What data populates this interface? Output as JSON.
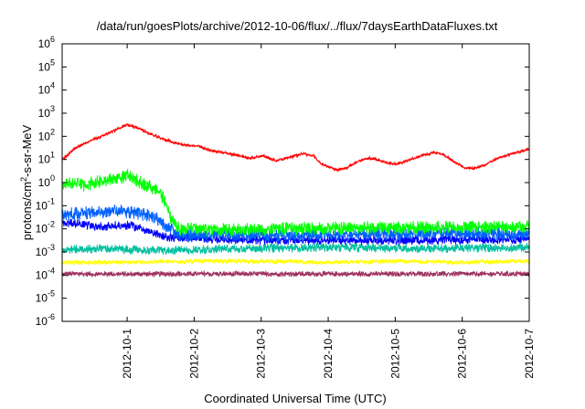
{
  "chart_data": {
    "type": "line",
    "title": "/data/run/goesPlots/archive/2012-10-06/flux/../flux/7daysEarthDataFluxes.txt",
    "xlabel": "Coordinated Universal Time (UTC)",
    "ylabel": "protons/cm²-s-sr-MeV",
    "ylabel_parts": {
      "main": "protons/cm",
      "sup": "2",
      "rest": "-s-sr-MeV"
    },
    "x_ticks": [
      "2012-10-1",
      "2012-10-2",
      "2012-10-3",
      "2012-10-4",
      "2012-10-5",
      "2012-10-6",
      "2012-10-7"
    ],
    "xlim_days": [
      0,
      6.97
    ],
    "tick_positions_days": [
      0.97,
      1.97,
      2.97,
      3.97,
      4.97,
      5.97,
      6.97
    ],
    "y_scale": "log",
    "y_ticks": [
      {
        "base": "10",
        "exp": "-6"
      },
      {
        "base": "10",
        "exp": "-5"
      },
      {
        "base": "10",
        "exp": "-4"
      },
      {
        "base": "10",
        "exp": "-3"
      },
      {
        "base": "10",
        "exp": "-2"
      },
      {
        "base": "10",
        "exp": "-1"
      },
      {
        "base": "10",
        "exp": "0"
      },
      {
        "base": "10",
        "exp": "1"
      },
      {
        "base": "10",
        "exp": "2"
      },
      {
        "base": "10",
        "exp": "3"
      },
      {
        "base": "10",
        "exp": "4"
      },
      {
        "base": "10",
        "exp": "5"
      },
      {
        "base": "10",
        "exp": "6"
      }
    ],
    "ylim_exp": [
      -6,
      6
    ],
    "grid": false,
    "series": [
      {
        "color": "#ff0000",
        "noise": 0.06,
        "points": [
          [
            0,
            1.0
          ],
          [
            0.2,
            1.5
          ],
          [
            0.4,
            1.8
          ],
          [
            0.55,
            1.95
          ],
          [
            0.7,
            2.15
          ],
          [
            0.85,
            2.35
          ],
          [
            0.97,
            2.5
          ],
          [
            1.1,
            2.4
          ],
          [
            1.25,
            2.2
          ],
          [
            1.4,
            2.0
          ],
          [
            1.55,
            1.85
          ],
          [
            1.7,
            1.7
          ],
          [
            1.9,
            1.6
          ],
          [
            2.05,
            1.55
          ],
          [
            2.2,
            1.4
          ],
          [
            2.4,
            1.3
          ],
          [
            2.6,
            1.2
          ],
          [
            2.8,
            1.05
          ],
          [
            3.0,
            1.15
          ],
          [
            3.2,
            0.95
          ],
          [
            3.4,
            1.1
          ],
          [
            3.6,
            1.25
          ],
          [
            3.75,
            1.15
          ],
          [
            3.85,
            0.85
          ],
          [
            3.95,
            0.7
          ],
          [
            4.1,
            0.55
          ],
          [
            4.25,
            0.65
          ],
          [
            4.4,
            0.9
          ],
          [
            4.55,
            1.05
          ],
          [
            4.7,
            1.0
          ],
          [
            4.85,
            0.85
          ],
          [
            5.0,
            0.8
          ],
          [
            5.2,
            1.0
          ],
          [
            5.4,
            1.2
          ],
          [
            5.55,
            1.3
          ],
          [
            5.7,
            1.2
          ],
          [
            5.85,
            0.9
          ],
          [
            6.0,
            0.65
          ],
          [
            6.15,
            0.6
          ],
          [
            6.3,
            0.75
          ],
          [
            6.5,
            1.05
          ],
          [
            6.7,
            1.25
          ],
          [
            6.97,
            1.45
          ]
        ]
      },
      {
        "color": "#00ff00",
        "noise": 0.3,
        "points": [
          [
            0,
            -0.05
          ],
          [
            0.3,
            -0.1
          ],
          [
            0.6,
            0.05
          ],
          [
            0.85,
            0.2
          ],
          [
            0.97,
            0.3
          ],
          [
            1.1,
            0.1
          ],
          [
            1.3,
            -0.15
          ],
          [
            1.45,
            -0.4
          ],
          [
            1.55,
            -0.9
          ],
          [
            1.62,
            -1.5
          ],
          [
            1.75,
            -2.0
          ],
          [
            2.5,
            -2.05
          ],
          [
            3.5,
            -2.0
          ],
          [
            4.5,
            -1.95
          ],
          [
            5.5,
            -1.95
          ],
          [
            6.5,
            -1.9
          ],
          [
            6.97,
            -1.9
          ]
        ]
      },
      {
        "color": "#0060ff",
        "noise": 0.3,
        "points": [
          [
            0,
            -1.4
          ],
          [
            0.4,
            -1.3
          ],
          [
            0.8,
            -1.2
          ],
          [
            1.1,
            -1.3
          ],
          [
            1.4,
            -1.5
          ],
          [
            1.6,
            -2.0
          ],
          [
            1.75,
            -2.25
          ],
          [
            3,
            -2.3
          ],
          [
            5,
            -2.2
          ],
          [
            6.97,
            -2.2
          ]
        ]
      },
      {
        "color": "#0000ff",
        "noise": 0.2,
        "points": [
          [
            0,
            -1.7
          ],
          [
            0.5,
            -1.9
          ],
          [
            1.0,
            -1.85
          ],
          [
            1.2,
            -2.0
          ],
          [
            1.5,
            -2.35
          ],
          [
            1.9,
            -2.4
          ],
          [
            3,
            -2.5
          ],
          [
            5,
            -2.5
          ],
          [
            6.97,
            -2.45
          ]
        ]
      },
      {
        "color": "#00c0a0",
        "noise": 0.2,
        "points": [
          [
            0,
            -2.9
          ],
          [
            0.6,
            -2.85
          ],
          [
            1.0,
            -2.9
          ],
          [
            1.6,
            -2.95
          ],
          [
            2.5,
            -2.85
          ],
          [
            4,
            -2.8
          ],
          [
            5.5,
            -2.85
          ],
          [
            6.97,
            -2.8
          ]
        ]
      },
      {
        "color": "#ffff00",
        "noise": 0.1,
        "points": [
          [
            0,
            -3.45
          ],
          [
            1,
            -3.45
          ],
          [
            2,
            -3.4
          ],
          [
            3,
            -3.4
          ],
          [
            4,
            -3.45
          ],
          [
            5,
            -3.4
          ],
          [
            6,
            -3.45
          ],
          [
            6.97,
            -3.4
          ]
        ]
      },
      {
        "color": "#9e3060",
        "noise": 0.12,
        "points": [
          [
            0,
            -3.95
          ],
          [
            1,
            -3.95
          ],
          [
            2,
            -3.95
          ],
          [
            3,
            -3.95
          ],
          [
            4,
            -3.95
          ],
          [
            5,
            -3.95
          ],
          [
            6,
            -3.95
          ],
          [
            6.97,
            -3.95
          ]
        ],
        "floor": -4.25
      }
    ]
  }
}
